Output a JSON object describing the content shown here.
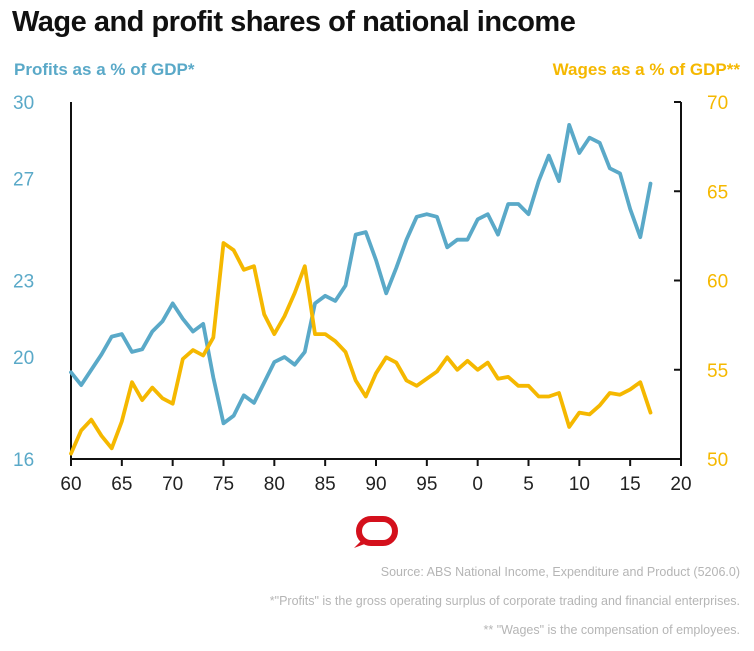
{
  "header": {
    "title": "Wage and profit shares of national income",
    "left_axis_label": "Profits as a % of GDP*",
    "right_axis_label": "Wages as a % of GDP**"
  },
  "notes": {
    "source": "Source: ABS National Income, Expenditure and Product (5206.0)",
    "profits_note": "*\"Profits\" is the gross operating surplus of corporate trading and financial enterprises.",
    "wages_note": "** \"Wages\" is the compensation of employees."
  },
  "colors": {
    "profits": "#5aa9c8",
    "wages": "#f5b800",
    "axis": "#111111",
    "logo": "#d4101c"
  },
  "logo_icon": "speech-bubble-logo-icon",
  "chart_data": {
    "type": "line",
    "title": "Wage and profit shares of national income",
    "x_tick_labels": [
      "60",
      "65",
      "70",
      "75",
      "80",
      "85",
      "90",
      "95",
      "0",
      "5",
      "10",
      "15",
      "20"
    ],
    "x_range": [
      1960,
      2020
    ],
    "left_axis": {
      "label": "Profits as a % of GDP*",
      "ticks": [
        "16",
        "20",
        "23",
        "27",
        "30"
      ],
      "range": [
        16,
        30
      ]
    },
    "right_axis": {
      "label": "Wages as a % of GDP**",
      "ticks": [
        "50",
        "55",
        "60",
        "65",
        "70"
      ],
      "range": [
        50,
        70
      ]
    },
    "series": [
      {
        "name": "Profits as a % of GDP*",
        "axis": "left",
        "x": [
          1960,
          1961,
          1962,
          1963,
          1964,
          1965,
          1966,
          1967,
          1968,
          1969,
          1970,
          1971,
          1972,
          1973,
          1974,
          1975,
          1976,
          1977,
          1978,
          1979,
          1980,
          1981,
          1982,
          1983,
          1984,
          1985,
          1986,
          1987,
          1988,
          1989,
          1990,
          1991,
          1992,
          1993,
          1994,
          1995,
          1996,
          1997,
          1998,
          1999,
          2000,
          2001,
          2002,
          2003,
          2004,
          2005,
          2006,
          2007,
          2008,
          2009,
          2010,
          2011,
          2012,
          2013,
          2014,
          2015,
          2016,
          2017
        ],
        "values": [
          19.4,
          18.9,
          19.5,
          20.1,
          20.8,
          20.9,
          20.2,
          20.3,
          21.0,
          21.4,
          22.1,
          21.5,
          21.0,
          21.3,
          19.2,
          17.4,
          17.7,
          18.5,
          18.2,
          19.0,
          19.8,
          20.0,
          19.7,
          20.2,
          22.1,
          22.4,
          22.2,
          22.8,
          24.8,
          24.9,
          23.8,
          22.5,
          23.5,
          24.6,
          25.5,
          25.6,
          25.5,
          24.3,
          24.6,
          24.6,
          25.4,
          25.6,
          24.8,
          26.0,
          26.0,
          25.6,
          26.9,
          27.9,
          26.9,
          29.1,
          28.0,
          28.6,
          28.4,
          27.4,
          27.2,
          25.8,
          24.7,
          26.8
        ]
      },
      {
        "name": "Wages as a % of GDP**",
        "axis": "right",
        "x": [
          1960,
          1961,
          1962,
          1963,
          1964,
          1965,
          1966,
          1967,
          1968,
          1969,
          1970,
          1971,
          1972,
          1973,
          1974,
          1975,
          1976,
          1977,
          1978,
          1979,
          1980,
          1981,
          1982,
          1983,
          1984,
          1985,
          1986,
          1987,
          1988,
          1989,
          1990,
          1991,
          1992,
          1993,
          1994,
          1995,
          1996,
          1997,
          1998,
          1999,
          2000,
          2001,
          2002,
          2003,
          2004,
          2005,
          2006,
          2007,
          2008,
          2009,
          2010,
          2011,
          2012,
          2013,
          2014,
          2015,
          2016,
          2017
        ],
        "values": [
          50.3,
          51.6,
          52.2,
          51.3,
          50.6,
          52.1,
          54.3,
          53.3,
          54.0,
          53.4,
          53.1,
          55.6,
          56.1,
          55.8,
          56.8,
          62.1,
          61.7,
          60.6,
          60.8,
          58.1,
          57.0,
          58.0,
          59.3,
          60.8,
          57.0,
          57.0,
          56.6,
          56.0,
          54.4,
          53.5,
          54.8,
          55.7,
          55.4,
          54.4,
          54.1,
          54.5,
          54.9,
          55.7,
          55.0,
          55.5,
          55.0,
          55.4,
          54.5,
          54.6,
          54.1,
          54.1,
          53.5,
          53.5,
          53.7,
          51.8,
          52.6,
          52.5,
          53.0,
          53.7,
          53.6,
          53.9,
          54.3,
          52.6
        ]
      }
    ]
  }
}
